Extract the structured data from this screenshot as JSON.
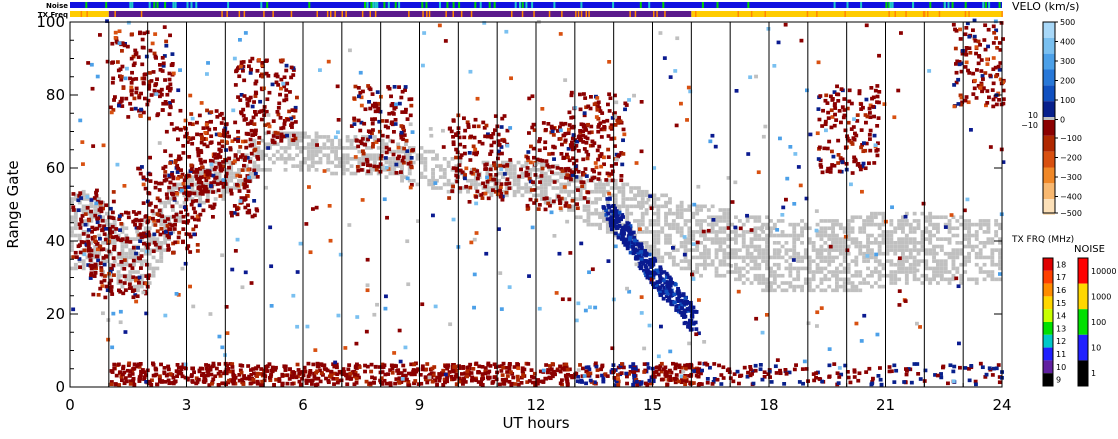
{
  "chart_data": {
    "type": "heatmap",
    "title": "",
    "xlabel": "UT hours",
    "ylabel": "Range Gate",
    "xlim": [
      0,
      24
    ],
    "ylim": [
      0,
      100
    ],
    "x_ticks": [
      0,
      3,
      6,
      9,
      12,
      15,
      18,
      21,
      24
    ],
    "y_ticks": [
      0,
      20,
      40,
      60,
      80,
      100
    ],
    "grid": "vertical lines every 1 UT hour",
    "status_bars": [
      {
        "label": "Noise",
        "segments": [
          {
            "x0": 0,
            "x1": 24,
            "color": "#1010e0"
          }
        ]
      },
      {
        "label": "TX Freq",
        "segments": [
          {
            "x0": 0,
            "x1": 1.0,
            "color": "#ffcc00"
          },
          {
            "x0": 1.0,
            "x1": 16.0,
            "color": "#5a1a8c"
          },
          {
            "x0": 16.0,
            "x1": 24,
            "color": "#ffcc00"
          }
        ]
      }
    ],
    "velocity_colorbar": {
      "title": "VELO (km/s)",
      "tick_labels": [
        "500",
        "400",
        "300",
        "200",
        "100",
        "0",
        "−100",
        "−200",
        "−300",
        "−400",
        "−500"
      ],
      "ground_scatter_labels": [
        "10",
        "−10"
      ],
      "colors": [
        "#a8d8f8",
        "#7ac0f0",
        "#4ca0e8",
        "#2878d8",
        "#1050c0",
        "#08208c",
        "#8b0000",
        "#b02800",
        "#d85010",
        "#f08828",
        "#f8b870",
        "#fce0b8"
      ]
    },
    "txfreq_colorbar": {
      "title": "TX FRQ (MHz)",
      "tick_labels": [
        "18",
        "17",
        "16",
        "15",
        "14",
        "13",
        "12",
        "11",
        "10",
        "9"
      ],
      "colors": [
        "#e00000",
        "#ff4000",
        "#ff8c00",
        "#ffd700",
        "#c8ff00",
        "#00e000",
        "#00c8c8",
        "#2020ff",
        "#6020a0",
        "#000000"
      ]
    },
    "noise_colorbar": {
      "title": "NOISE",
      "tick_labels": [
        "10000",
        "1000",
        "100",
        "10",
        "1"
      ],
      "colors": [
        "#ff0000",
        "#ffd700",
        "#00e000",
        "#2020ff",
        "#000000"
      ]
    },
    "series": [
      {
        "kind": "ground-scatter band",
        "color": "#c0c0c0",
        "x": [
          0,
          0.5,
          1,
          1.5,
          2,
          3,
          4,
          5,
          8,
          10,
          11,
          12,
          16,
          17,
          18,
          19,
          20,
          21,
          22,
          23,
          24
        ],
        "y_low": [
          32,
          32,
          30,
          26,
          28,
          50,
          52,
          60,
          58,
          53,
          52,
          52,
          30,
          30,
          26,
          26,
          26,
          28,
          28,
          28,
          30
        ],
        "y_high": [
          52,
          54,
          48,
          42,
          46,
          60,
          62,
          70,
          68,
          62,
          62,
          62,
          50,
          48,
          46,
          46,
          46,
          48,
          48,
          46,
          46
        ]
      },
      {
        "kind": "negative velocity echoes",
        "color": "#8b0000",
        "x": [
          0.3,
          1.2,
          1.8,
          2.5,
          3.2,
          4,
          5,
          8,
          10.5,
          12.5,
          13.5,
          20,
          23.5
        ],
        "y": [
          42,
          36,
          85,
          48,
          64,
          58,
          78,
          70,
          62,
          60,
          68,
          70,
          88
        ]
      },
      {
        "kind": "positive velocity streak",
        "color": "#0a1a90",
        "x": [
          13.8,
          14.5,
          15.2,
          16.0
        ],
        "y": [
          48,
          38,
          28,
          18
        ]
      },
      {
        "kind": "near-range echoes",
        "color": "#8b0000",
        "x": [
          1,
          4,
          8,
          12,
          14,
          16,
          20
        ],
        "y": [
          2,
          2,
          2,
          2,
          2,
          2,
          2
        ]
      }
    ]
  }
}
